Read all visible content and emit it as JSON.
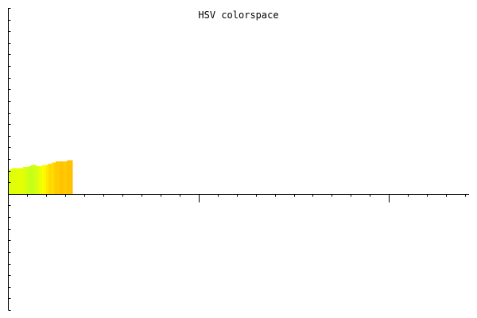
{
  "chart_data": {
    "type": "bar",
    "title": "HSV colorspace",
    "xlabel": "",
    "ylabel": "",
    "grid": false,
    "legend": "none",
    "ylim": [
      -10,
      16
    ],
    "xlim": [
      0,
      242
    ],
    "x": [
      0,
      1,
      2,
      3,
      4,
      5,
      6,
      7,
      8,
      9,
      10,
      11,
      12,
      13,
      14,
      15,
      16,
      17,
      18,
      19,
      20,
      21,
      22,
      23,
      24,
      25,
      26,
      27,
      28,
      29,
      30,
      31,
      32,
      33
    ],
    "values": [
      2.1,
      2.1,
      2.2,
      2.2,
      2.2,
      2.2,
      2.2,
      2.2,
      2.3,
      2.3,
      2.3,
      2.4,
      2.5,
      2.5,
      2.5,
      2.4,
      2.4,
      2.4,
      2.5,
      2.5,
      2.5,
      2.6,
      2.6,
      2.7,
      2.7,
      2.8,
      2.8,
      2.8,
      2.8,
      2.8,
      2.8,
      2.9,
      2.9,
      2.9
    ],
    "bar_colors": [
      "#dcff0c",
      "#deff0a",
      "#e0ff08",
      "#dfff09",
      "#e2ff06",
      "#e6ff04",
      "#e4ff05",
      "#e2ff06",
      "#e0ff08",
      "#d6ff0e",
      "#ccff14",
      "#c8ff16",
      "#c4ff18",
      "#caff15",
      "#d2ff12",
      "#dcff0e",
      "#e8ff08",
      "#f2ff04",
      "#faff02",
      "#fff600",
      "#ffe800",
      "#ffdc00",
      "#ffd800",
      "#ffe000",
      "#ffd000",
      "#ffc800",
      "#ffcc00",
      "#ffc400",
      "#ffc000",
      "#ffcc00",
      "#ffc800",
      "#ffbe00",
      "#ffc400",
      "#ffbe00"
    ]
  }
}
